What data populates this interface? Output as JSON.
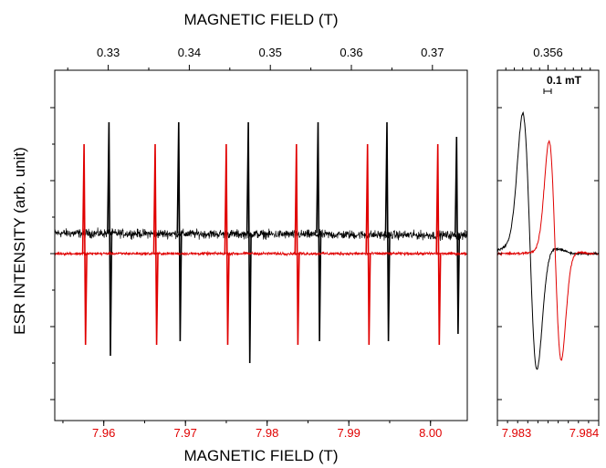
{
  "chart_data": [
    {
      "type": "line",
      "panel": "main",
      "top_xlabel": "MAGNETIC FIELD (T)",
      "xlabel": "MAGNETIC FIELD (T)",
      "ylabel": "ESR INTENSITY (arb. unit)",
      "top_ticks": [
        "0.33",
        "0.34",
        "0.35",
        "0.36",
        "0.37"
      ],
      "top_xlim": [
        0.3234,
        0.3743
      ],
      "bottom_ticks": [
        "7.96",
        "7.97",
        "7.98",
        "7.99",
        "8.00"
      ],
      "xlim": [
        7.954,
        8.0045
      ],
      "series": [
        {
          "color": "#000000",
          "baseline": 0.28,
          "noise": 0.06,
          "baseline_trend": -0.1,
          "lines": [
            {
              "x": 0.3302,
              "pos": 1.8,
              "neg": -1.4
            },
            {
              "x": 0.3388,
              "pos": 1.8,
              "neg": -1.2
            },
            {
              "x": 0.3474,
              "pos": 1.8,
              "neg": -1.5
            },
            {
              "x": 0.356,
              "pos": 1.8,
              "neg": -1.2
            },
            {
              "x": 0.3645,
              "pos": 1.8,
              "neg": -1.2
            },
            {
              "x": 0.3731,
              "pos": 1.6,
              "neg": -1.1
            }
          ]
        },
        {
          "color": "#e00000",
          "baseline": 0.0,
          "noise": 0.02,
          "baseline_trend": 0.0,
          "lines": [
            {
              "x": 7.9577,
              "pos": 1.5,
              "neg": -1.25
            },
            {
              "x": 7.9664,
              "pos": 1.5,
              "neg": -1.25
            },
            {
              "x": 7.9751,
              "pos": 1.5,
              "neg": -1.25
            },
            {
              "x": 7.9837,
              "pos": 1.5,
              "neg": -1.25
            },
            {
              "x": 7.9924,
              "pos": 1.5,
              "neg": -1.25
            },
            {
              "x": 8.001,
              "pos": 1.5,
              "neg": -1.25
            }
          ]
        }
      ]
    },
    {
      "type": "line",
      "panel": "zoom",
      "top_ticks": [
        "0.356"
      ],
      "top_xlim": [
        0.35588,
        0.35612
      ],
      "bottom_ticks": [
        "7.983",
        "7.984"
      ],
      "xlim": [
        7.983,
        7.984
      ],
      "scale_bar_label": "0.1 mT",
      "series": [
        {
          "color": "#000000",
          "center": 7.98332,
          "width": 7e-05,
          "amp": 1.75,
          "baseline": 0.2
        },
        {
          "color": "#e00000",
          "center": 7.98357,
          "width": 6e-05,
          "amp": 1.5,
          "baseline": 0.05
        }
      ]
    }
  ]
}
